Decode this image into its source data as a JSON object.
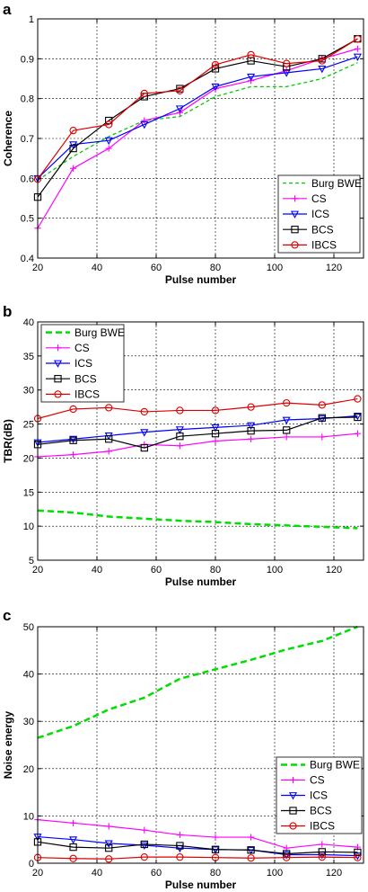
{
  "chart_data": [
    {
      "type": "line",
      "panel_label": "a",
      "xlabel": "Pulse number",
      "ylabel": "Coherence",
      "xlim": [
        20,
        130
      ],
      "ylim": [
        0.4,
        1
      ],
      "xticks": [
        20,
        40,
        60,
        80,
        100,
        120
      ],
      "yticks": [
        0.4,
        0.5,
        0.6,
        0.7,
        0.8,
        0.9,
        1
      ],
      "ytick_labels": [
        "0.4",
        "0.5",
        "0.6",
        "0.7",
        "0.8",
        "0.9",
        "1"
      ],
      "grid": true,
      "legend_position": "bottom-right",
      "x": [
        20,
        32,
        44,
        56,
        68,
        80,
        92,
        104,
        116,
        128
      ],
      "series": [
        {
          "name": "Burg BWE",
          "color": "#00cc00",
          "dash": "dashed",
          "marker": "none",
          "width": 1.3,
          "values": [
            0.595,
            0.655,
            0.705,
            0.745,
            0.755,
            0.805,
            0.83,
            0.83,
            0.85,
            0.89
          ]
        },
        {
          "name": "CS",
          "color": "#ff00ff",
          "dash": "solid",
          "marker": "plus",
          "width": 1.2,
          "values": [
            0.475,
            0.625,
            0.675,
            0.745,
            0.765,
            0.825,
            0.845,
            0.87,
            0.9,
            0.925
          ]
        },
        {
          "name": "ICS",
          "color": "#0000ff",
          "dash": "solid",
          "marker": "triangle-down",
          "width": 1.2,
          "values": [
            0.6,
            0.685,
            0.695,
            0.735,
            0.775,
            0.83,
            0.855,
            0.865,
            0.875,
            0.905
          ]
        },
        {
          "name": "BCS",
          "color": "#000000",
          "dash": "solid",
          "marker": "square",
          "width": 1.2,
          "values": [
            0.553,
            0.675,
            0.745,
            0.805,
            0.825,
            0.875,
            0.895,
            0.88,
            0.9,
            0.95
          ]
        },
        {
          "name": "IBCS",
          "color": "#dd0000",
          "dash": "solid",
          "marker": "circle",
          "width": 1.2,
          "values": [
            0.598,
            0.72,
            0.735,
            0.813,
            0.82,
            0.885,
            0.91,
            0.888,
            0.895,
            0.95
          ]
        }
      ]
    },
    {
      "type": "line",
      "panel_label": "b",
      "xlabel": "Pulse number",
      "ylabel": "TBR(dB)",
      "xlim": [
        20,
        130
      ],
      "ylim": [
        5,
        40
      ],
      "xticks": [
        20,
        40,
        60,
        80,
        100,
        120
      ],
      "yticks": [
        5,
        10,
        15,
        20,
        25,
        30,
        35,
        40
      ],
      "ytick_labels": [
        "5",
        "10",
        "15",
        "20",
        "25",
        "30",
        "35",
        "40"
      ],
      "grid": true,
      "legend_position": "top-left",
      "x": [
        20,
        32,
        44,
        56,
        68,
        80,
        92,
        104,
        116,
        128
      ],
      "series": [
        {
          "name": "Burg BWE",
          "color": "#00dd00",
          "dash": "dashed",
          "marker": "none",
          "width": 2.5,
          "values": [
            12.3,
            12.0,
            11.4,
            11.1,
            10.8,
            10.6,
            10.3,
            10.1,
            9.9,
            9.7
          ]
        },
        {
          "name": "CS",
          "color": "#ff00ff",
          "dash": "solid",
          "marker": "plus",
          "width": 1.2,
          "values": [
            20.2,
            20.5,
            21.0,
            22.0,
            21.8,
            22.5,
            22.8,
            23.1,
            23.1,
            23.6
          ]
        },
        {
          "name": "ICS",
          "color": "#0000ff",
          "dash": "solid",
          "marker": "triangle-down",
          "width": 1.2,
          "values": [
            22.3,
            22.8,
            23.3,
            23.8,
            24.2,
            24.5,
            24.8,
            25.6,
            25.8,
            26.2
          ]
        },
        {
          "name": "BCS",
          "color": "#000000",
          "dash": "solid",
          "marker": "square",
          "width": 1.2,
          "values": [
            22.0,
            22.6,
            22.8,
            21.5,
            23.2,
            23.6,
            24.0,
            24.1,
            25.9,
            26.0
          ]
        },
        {
          "name": "IBCS",
          "color": "#dd0000",
          "dash": "solid",
          "marker": "circle",
          "width": 1.2,
          "values": [
            25.8,
            27.2,
            27.4,
            26.8,
            27.0,
            27.0,
            27.5,
            28.1,
            27.8,
            28.7
          ]
        }
      ]
    },
    {
      "type": "line",
      "panel_label": "c",
      "xlabel": "Pulse number",
      "ylabel": "Noise energy",
      "xlim": [
        20,
        130
      ],
      "ylim": [
        0,
        50
      ],
      "xticks": [
        20,
        40,
        60,
        80,
        100,
        120
      ],
      "yticks": [
        0,
        10,
        20,
        30,
        40,
        50
      ],
      "ytick_labels": [
        "0",
        "10",
        "20",
        "30",
        "40",
        "50"
      ],
      "grid": true,
      "legend_position": "right",
      "x": [
        20,
        32,
        44,
        56,
        68,
        80,
        92,
        104,
        116,
        128
      ],
      "series": [
        {
          "name": "Burg BWE",
          "color": "#00dd00",
          "dash": "dashed",
          "marker": "none",
          "width": 2.5,
          "values": [
            26.5,
            29.0,
            32.5,
            35.0,
            39.0,
            41.0,
            43.0,
            45.2,
            47.0,
            50.0
          ]
        },
        {
          "name": "CS",
          "color": "#ff00ff",
          "dash": "solid",
          "marker": "plus",
          "width": 1.2,
          "values": [
            9.2,
            8.5,
            7.8,
            7.0,
            6.0,
            5.5,
            5.5,
            3.2,
            4.0,
            3.4
          ]
        },
        {
          "name": "ICS",
          "color": "#0000ff",
          "dash": "solid",
          "marker": "triangle-down",
          "width": 1.2,
          "values": [
            5.6,
            5.0,
            4.2,
            3.8,
            3.2,
            2.9,
            2.8,
            1.8,
            1.8,
            1.6
          ]
        },
        {
          "name": "BCS",
          "color": "#000000",
          "dash": "solid",
          "marker": "square",
          "width": 1.2,
          "values": [
            4.5,
            3.4,
            3.2,
            4.0,
            3.7,
            2.9,
            2.8,
            2.0,
            2.4,
            2.3
          ]
        },
        {
          "name": "IBCS",
          "color": "#dd0000",
          "dash": "solid",
          "marker": "circle",
          "width": 1.2,
          "values": [
            1.2,
            1.0,
            0.9,
            1.3,
            1.3,
            1.2,
            1.1,
            1.2,
            1.3,
            1.2
          ]
        }
      ]
    }
  ]
}
